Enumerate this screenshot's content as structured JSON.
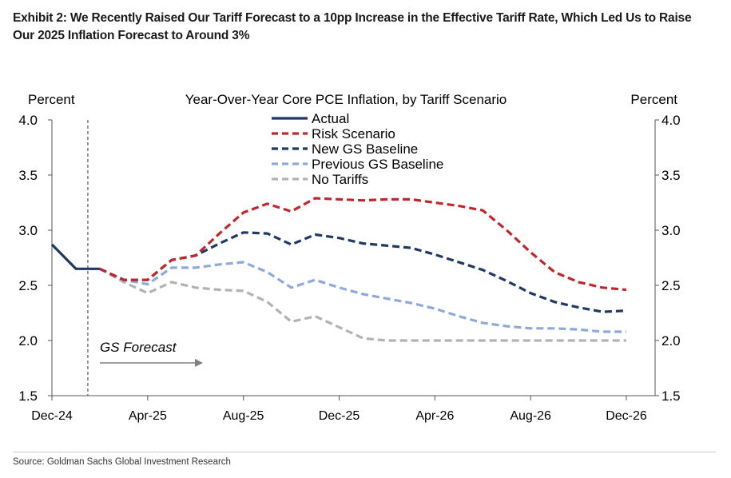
{
  "exhibit": {
    "title": "Exhibit 2: We Recently Raised Our Tariff Forecast to a 10pp Increase in the Effective Tariff Rate, Which Led Us to Raise Our 2025 Inflation Forecast to Around 3%",
    "source": "Source: Goldman Sachs Global Investment Research"
  },
  "chart_data": {
    "type": "line",
    "title": "Year-Over-Year Core PCE Inflation, by Tariff Scenario",
    "ylabel_left": "Percent",
    "ylabel_right": "Percent",
    "ylim": [
      1.5,
      4.0
    ],
    "yticks": [
      "4.0",
      "3.5",
      "3.0",
      "2.5",
      "2.0",
      "1.5"
    ],
    "ytick_values": [
      4.0,
      3.5,
      3.0,
      2.5,
      2.0,
      1.5
    ],
    "x_tick_labels": [
      "Dec-24",
      "Apr-25",
      "Aug-25",
      "Dec-25",
      "Apr-26",
      "Aug-26",
      "Dec-26"
    ],
    "x_tick_index": [
      0,
      4,
      8,
      12,
      16,
      20,
      24
    ],
    "months": [
      "Dec-24",
      "Jan-25",
      "Feb-25",
      "Mar-25",
      "Apr-25",
      "May-25",
      "Jun-25",
      "Jul-25",
      "Aug-25",
      "Sep-25",
      "Oct-25",
      "Nov-25",
      "Dec-25",
      "Jan-26",
      "Feb-26",
      "Mar-26",
      "Apr-26",
      "May-26",
      "Jun-26",
      "Jul-26",
      "Aug-26",
      "Sep-26",
      "Oct-26",
      "Nov-26",
      "Dec-26"
    ],
    "forecast_start": "Feb-25",
    "forecast_start_index": 1.5,
    "annotation": "GS Forecast",
    "grid": false,
    "legend_position": "top-center",
    "series": [
      {
        "name": "Actual",
        "style": "solid",
        "color": "#1f3864",
        "x_index": [
          0,
          1,
          2
        ],
        "values": [
          2.87,
          2.65,
          2.65
        ]
      },
      {
        "name": "Risk Scenario",
        "style": "dashed",
        "color": "#c0272d",
        "x_index": [
          2,
          3,
          4,
          5,
          6,
          7,
          8,
          9,
          10,
          11,
          12,
          13,
          14,
          15,
          16,
          17,
          18,
          19,
          20,
          21,
          22,
          23,
          24
        ],
        "values": [
          2.65,
          2.55,
          2.55,
          2.73,
          2.77,
          2.97,
          3.16,
          3.24,
          3.17,
          3.29,
          3.28,
          3.27,
          3.28,
          3.28,
          3.25,
          3.22,
          3.18,
          3.0,
          2.8,
          2.62,
          2.53,
          2.48,
          2.46
        ]
      },
      {
        "name": "New GS Baseline",
        "style": "dashed",
        "color": "#1f3864",
        "x_index": [
          2,
          3,
          4,
          5,
          6,
          7,
          8,
          9,
          10,
          11,
          12,
          13,
          14,
          15,
          16,
          17,
          18,
          19,
          20,
          21,
          22,
          23,
          24
        ],
        "values": [
          2.65,
          2.55,
          2.55,
          2.73,
          2.77,
          2.88,
          2.98,
          2.97,
          2.87,
          2.96,
          2.93,
          2.88,
          2.86,
          2.84,
          2.78,
          2.71,
          2.64,
          2.54,
          2.43,
          2.35,
          2.3,
          2.26,
          2.27
        ]
      },
      {
        "name": "Previous GS Baseline",
        "style": "dashed",
        "color": "#8eaadb",
        "x_index": [
          2,
          3,
          4,
          5,
          6,
          7,
          8,
          9,
          10,
          11,
          12,
          13,
          14,
          15,
          16,
          17,
          18,
          19,
          20,
          21,
          22,
          23,
          24
        ],
        "values": [
          2.65,
          2.55,
          2.51,
          2.66,
          2.66,
          2.69,
          2.71,
          2.62,
          2.48,
          2.55,
          2.48,
          2.42,
          2.38,
          2.34,
          2.29,
          2.22,
          2.16,
          2.13,
          2.11,
          2.11,
          2.1,
          2.08,
          2.08
        ]
      },
      {
        "name": "No Tariffs",
        "style": "dashed",
        "color": "#b3b3b3",
        "x_index": [
          2,
          3,
          4,
          5,
          6,
          7,
          8,
          9,
          10,
          11,
          12,
          13,
          14,
          15,
          16,
          17,
          18,
          19,
          20,
          21,
          22,
          23,
          24
        ],
        "values": [
          2.65,
          2.53,
          2.43,
          2.53,
          2.48,
          2.46,
          2.45,
          2.35,
          2.17,
          2.22,
          2.12,
          2.02,
          2.0,
          2.0,
          2.0,
          2.0,
          2.0,
          2.0,
          2.0,
          2.0,
          2.0,
          2.0,
          2.0
        ]
      }
    ]
  }
}
